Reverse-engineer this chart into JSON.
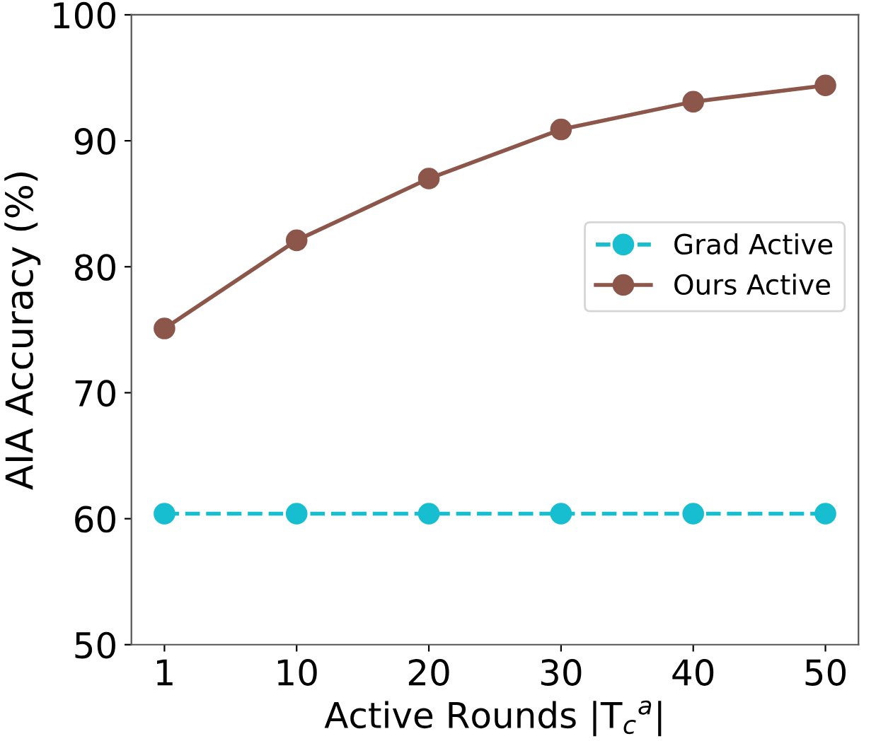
{
  "chart_data": {
    "type": "line",
    "xlabel": "Active Rounds |T$_{c}$$^{a}$|",
    "ylabel": "AIA Accuracy (%)",
    "categories": [
      "1",
      "10",
      "20",
      "30",
      "40",
      "50"
    ],
    "series": [
      {
        "name": "Grad Active",
        "color": "#17becf",
        "line_style": "dashed",
        "values": [
          60.4,
          60.4,
          60.4,
          60.4,
          60.4,
          60.4
        ]
      },
      {
        "name": "Ours Active",
        "color": "#8c564b",
        "line_style": "solid",
        "values": [
          75.1,
          82.1,
          87.0,
          90.9,
          93.1,
          94.4
        ]
      }
    ],
    "ylim": [
      50,
      100
    ],
    "yticks": [
      50,
      60,
      70,
      80,
      90,
      100
    ],
    "marker": "circle",
    "legend": "right",
    "grid": false
  }
}
